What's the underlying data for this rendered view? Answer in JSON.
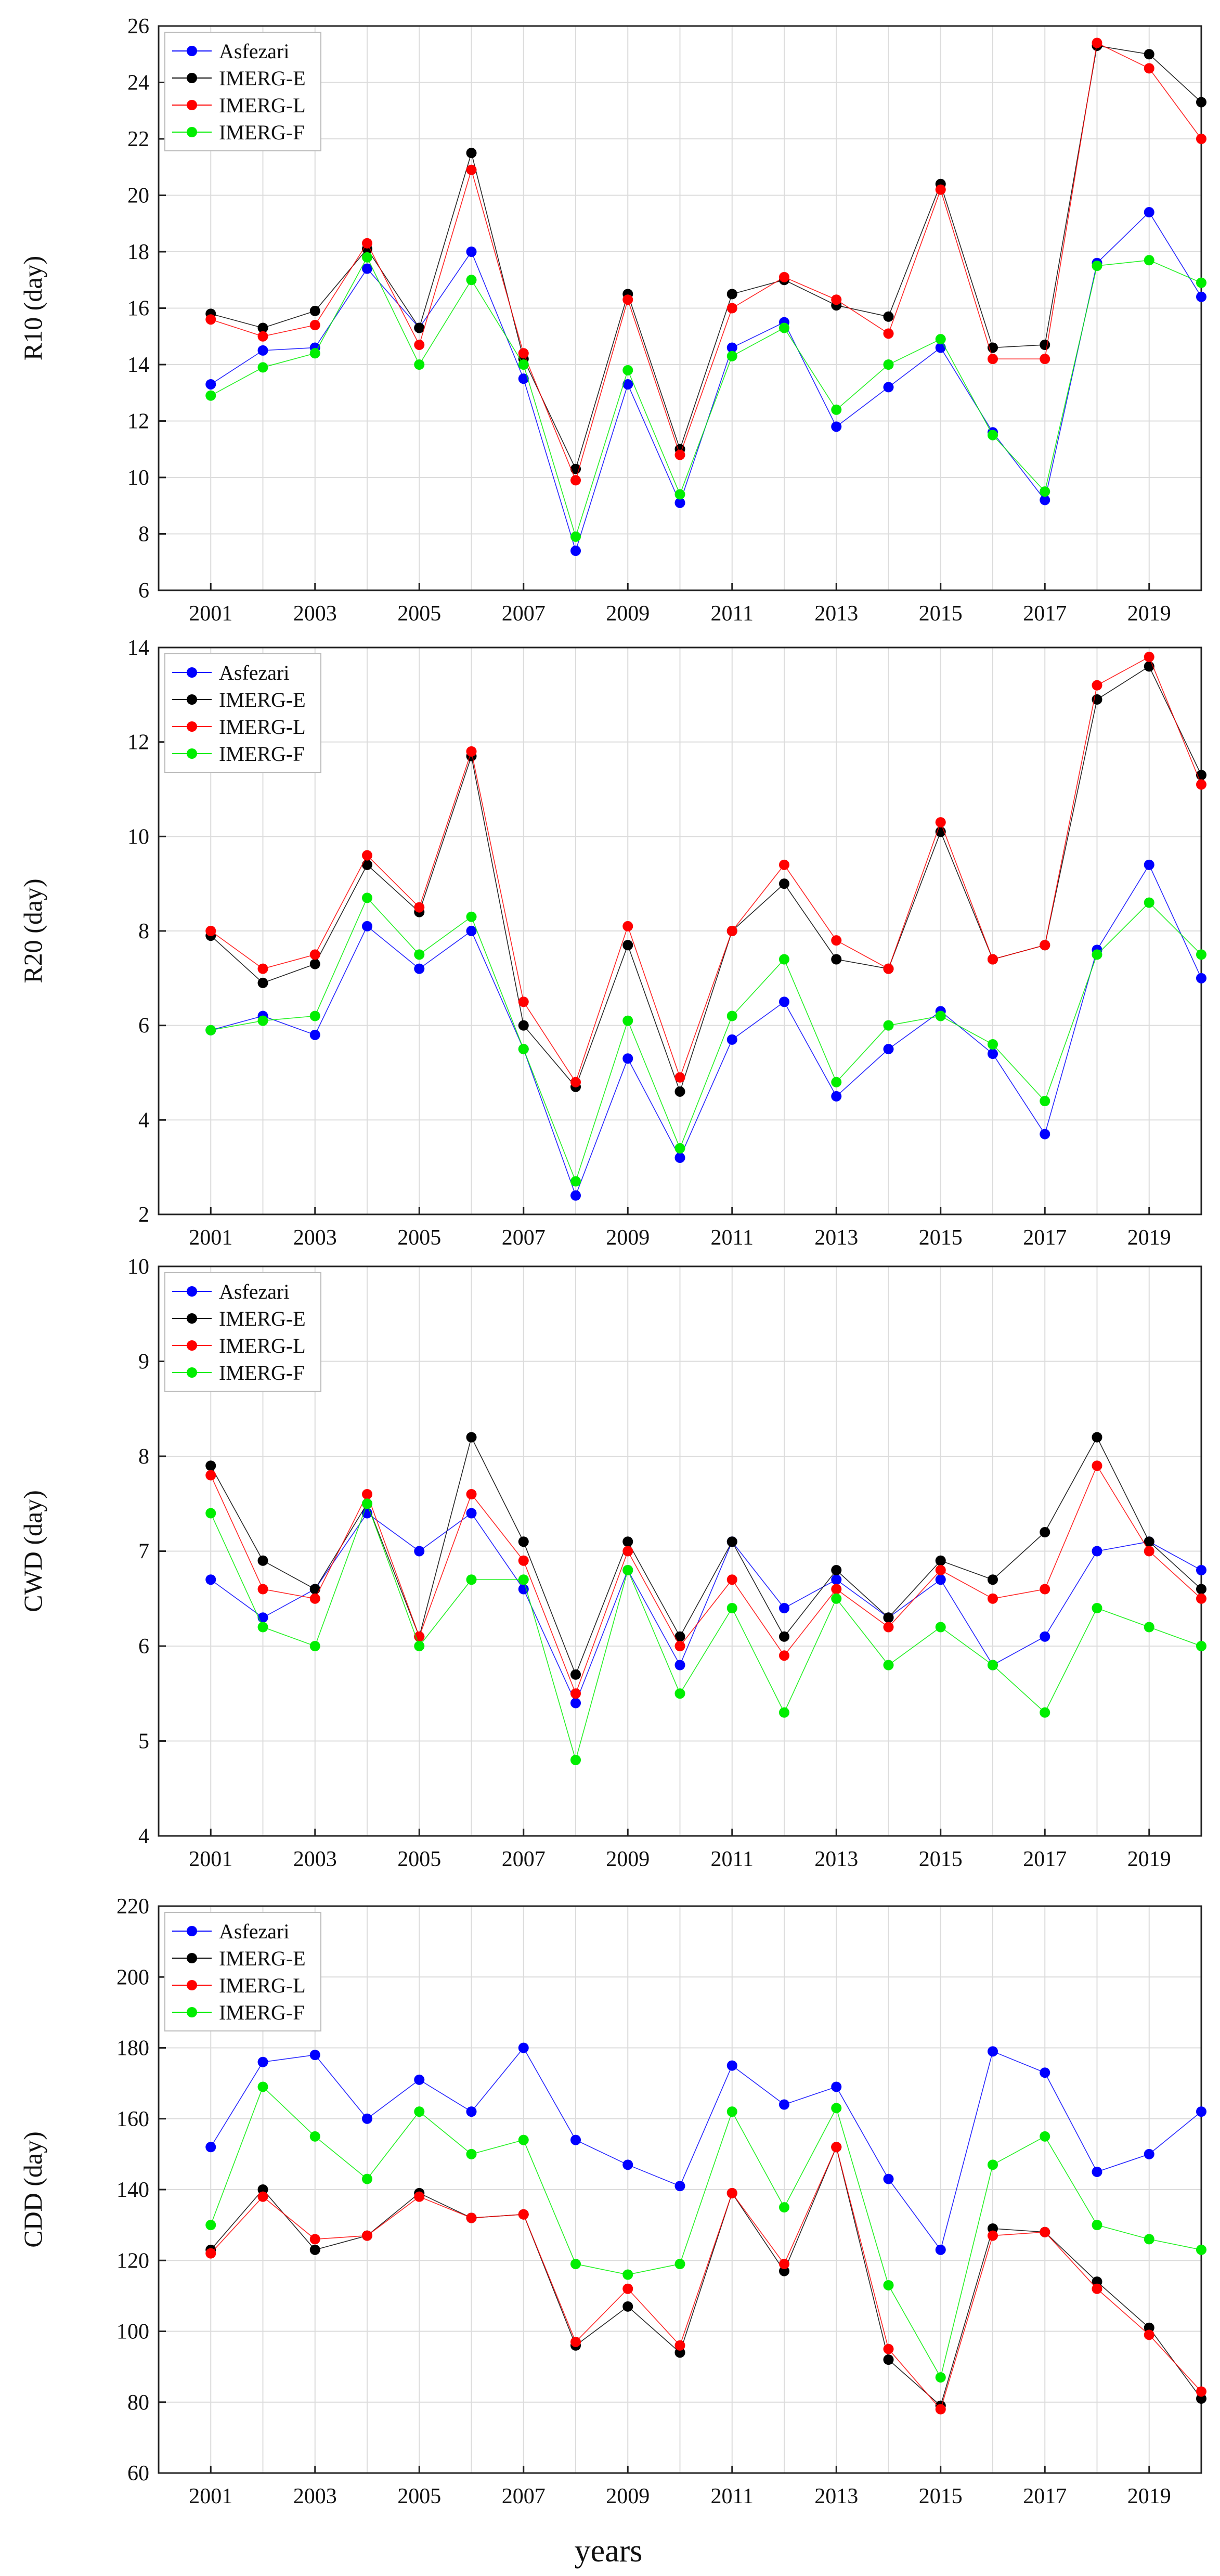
{
  "figure": {
    "xlabel": "years"
  },
  "colors": {
    "Asfezari": "#0000ff",
    "IMERG-E": "#000000",
    "IMERG-L": "#ff0000",
    "IMERG-F": "#00ee00",
    "grid": "#dcdcdc",
    "axis": "#222222"
  },
  "chart_data": [
    {
      "type": "line",
      "ylabel": "R10 (day)",
      "ylim": [
        6,
        26
      ],
      "yticks": [
        "6",
        "8",
        "10",
        "12",
        "14",
        "16",
        "18",
        "20",
        "22",
        "24",
        "26"
      ],
      "xlim": [
        2000,
        2020
      ],
      "xticks": [
        "2001",
        "2003",
        "2005",
        "2007",
        "2009",
        "2011",
        "2013",
        "2015",
        "2017",
        "2019"
      ],
      "x": [
        2001,
        2002,
        2003,
        2004,
        2005,
        2006,
        2007,
        2008,
        2009,
        2010,
        2011,
        2012,
        2013,
        2014,
        2015,
        2016,
        2017,
        2018,
        2019,
        2020
      ],
      "legend": [
        "Asfezari",
        "IMERG-E",
        "IMERG-L",
        "IMERG-F"
      ],
      "series": [
        {
          "name": "Asfezari",
          "values": [
            13.3,
            14.5,
            14.6,
            17.4,
            15.3,
            18.0,
            13.5,
            7.4,
            13.3,
            9.1,
            14.6,
            15.5,
            11.8,
            13.2,
            14.6,
            11.6,
            9.2,
            17.6,
            19.4,
            16.4
          ]
        },
        {
          "name": "IMERG-E",
          "values": [
            15.8,
            15.3,
            15.9,
            18.1,
            15.3,
            21.5,
            14.2,
            10.3,
            16.5,
            11.0,
            16.5,
            17.0,
            16.1,
            15.7,
            20.4,
            14.6,
            14.7,
            25.3,
            25.0,
            23.3
          ]
        },
        {
          "name": "IMERG-L",
          "values": [
            15.6,
            15.0,
            15.4,
            18.3,
            14.7,
            20.9,
            14.4,
            9.9,
            16.3,
            10.8,
            16.0,
            17.1,
            16.3,
            15.1,
            20.2,
            14.2,
            14.2,
            25.4,
            24.5,
            22.0
          ]
        },
        {
          "name": "IMERG-F",
          "values": [
            12.9,
            13.9,
            14.4,
            17.8,
            14.0,
            17.0,
            14.0,
            7.9,
            13.8,
            9.4,
            14.3,
            15.3,
            12.4,
            14.0,
            14.9,
            11.5,
            9.5,
            17.5,
            17.7,
            16.9
          ]
        }
      ]
    },
    {
      "type": "line",
      "ylabel": "R20 (day)",
      "ylim": [
        2,
        14
      ],
      "yticks": [
        "2",
        "4",
        "6",
        "8",
        "10",
        "12",
        "14"
      ],
      "xlim": [
        2000,
        2020
      ],
      "xticks": [
        "2001",
        "2003",
        "2005",
        "2007",
        "2009",
        "2011",
        "2013",
        "2015",
        "2017",
        "2019"
      ],
      "x": [
        2001,
        2002,
        2003,
        2004,
        2005,
        2006,
        2007,
        2008,
        2009,
        2010,
        2011,
        2012,
        2013,
        2014,
        2015,
        2016,
        2017,
        2018,
        2019,
        2020
      ],
      "legend": [
        "Asfezari",
        "IMERG-E",
        "IMERG-L",
        "IMERG-F"
      ],
      "series": [
        {
          "name": "Asfezari",
          "values": [
            5.9,
            6.2,
            5.8,
            8.1,
            7.2,
            8.0,
            5.5,
            2.4,
            5.3,
            3.2,
            5.7,
            6.5,
            4.5,
            5.5,
            6.3,
            5.4,
            3.7,
            7.6,
            9.4,
            7.0
          ]
        },
        {
          "name": "IMERG-E",
          "values": [
            7.9,
            6.9,
            7.3,
            9.4,
            8.4,
            11.7,
            6.0,
            4.7,
            7.7,
            4.6,
            8.0,
            9.0,
            7.4,
            7.2,
            10.1,
            7.4,
            7.7,
            12.9,
            13.6,
            11.3
          ]
        },
        {
          "name": "IMERG-L",
          "values": [
            8.0,
            7.2,
            7.5,
            9.6,
            8.5,
            11.8,
            6.5,
            4.8,
            8.1,
            4.9,
            8.0,
            9.4,
            7.8,
            7.2,
            10.3,
            7.4,
            7.7,
            13.2,
            13.8,
            11.1
          ]
        },
        {
          "name": "IMERG-F",
          "values": [
            5.9,
            6.1,
            6.2,
            8.7,
            7.5,
            8.3,
            5.5,
            2.7,
            6.1,
            3.4,
            6.2,
            7.4,
            4.8,
            6.0,
            6.2,
            5.6,
            4.4,
            7.5,
            8.6,
            7.5
          ]
        }
      ]
    },
    {
      "type": "line",
      "ylabel": "CWD (day)",
      "ylim": [
        4,
        10
      ],
      "yticks": [
        "4",
        "5",
        "6",
        "7",
        "8",
        "9",
        "10"
      ],
      "xlim": [
        2000,
        2020
      ],
      "xticks": [
        "2001",
        "2003",
        "2005",
        "2007",
        "2009",
        "2011",
        "2013",
        "2015",
        "2017",
        "2019"
      ],
      "x": [
        2001,
        2002,
        2003,
        2004,
        2005,
        2006,
        2007,
        2008,
        2009,
        2010,
        2011,
        2012,
        2013,
        2014,
        2015,
        2016,
        2017,
        2018,
        2019,
        2020
      ],
      "legend": [
        "Asfezari",
        "IMERG-E",
        "IMERG-L",
        "IMERG-F"
      ],
      "series": [
        {
          "name": "Asfezari",
          "values": [
            6.7,
            6.3,
            6.6,
            7.4,
            7.0,
            7.4,
            6.6,
            5.4,
            6.8,
            5.8,
            7.1,
            6.4,
            6.7,
            6.3,
            6.7,
            5.8,
            6.1,
            7.0,
            7.1,
            6.8
          ]
        },
        {
          "name": "IMERG-E",
          "values": [
            7.9,
            6.9,
            6.6,
            7.5,
            6.1,
            8.2,
            7.1,
            5.7,
            7.1,
            6.1,
            7.1,
            6.1,
            6.8,
            6.3,
            6.9,
            6.7,
            7.2,
            8.2,
            7.1,
            6.6
          ]
        },
        {
          "name": "IMERG-L",
          "values": [
            7.8,
            6.6,
            6.5,
            7.6,
            6.1,
            7.6,
            6.9,
            5.5,
            7.0,
            6.0,
            6.7,
            5.9,
            6.6,
            6.2,
            6.8,
            6.5,
            6.6,
            7.9,
            7.0,
            6.5
          ]
        },
        {
          "name": "IMERG-F",
          "values": [
            7.4,
            6.2,
            6.0,
            7.5,
            6.0,
            6.7,
            6.7,
            4.8,
            6.8,
            5.5,
            6.4,
            5.3,
            6.5,
            5.8,
            6.2,
            5.8,
            5.3,
            6.4,
            6.2,
            6.0
          ]
        }
      ]
    },
    {
      "type": "line",
      "ylabel": "CDD (day)",
      "ylim": [
        60,
        220
      ],
      "yticks": [
        "60",
        "80",
        "100",
        "120",
        "140",
        "160",
        "180",
        "200",
        "220"
      ],
      "xlim": [
        2000,
        2020
      ],
      "xticks": [
        "2001",
        "2003",
        "2005",
        "2007",
        "2009",
        "2011",
        "2013",
        "2015",
        "2017",
        "2019"
      ],
      "x": [
        2001,
        2002,
        2003,
        2004,
        2005,
        2006,
        2007,
        2008,
        2009,
        2010,
        2011,
        2012,
        2013,
        2014,
        2015,
        2016,
        2017,
        2018,
        2019,
        2020
      ],
      "legend": [
        "Asfezari",
        "IMERG-E",
        "IMERG-L",
        "IMERG-F"
      ],
      "series": [
        {
          "name": "Asfezari",
          "values": [
            152,
            176,
            178,
            160,
            171,
            162,
            180,
            154,
            147,
            141,
            175,
            164,
            169,
            143,
            123,
            179,
            173,
            145,
            150,
            162
          ]
        },
        {
          "name": "IMERG-E",
          "values": [
            123,
            140,
            123,
            127,
            139,
            132,
            133,
            96,
            107,
            94,
            139,
            117,
            152,
            92,
            79,
            129,
            128,
            114,
            101,
            81
          ]
        },
        {
          "name": "IMERG-L",
          "values": [
            122,
            138,
            126,
            127,
            138,
            132,
            133,
            97,
            112,
            96,
            139,
            119,
            152,
            95,
            78,
            127,
            128,
            112,
            99,
            83
          ]
        },
        {
          "name": "IMERG-F",
          "values": [
            130,
            169,
            155,
            143,
            162,
            150,
            154,
            119,
            116,
            119,
            162,
            135,
            163,
            113,
            87,
            147,
            155,
            130,
            126,
            123
          ]
        }
      ]
    }
  ]
}
